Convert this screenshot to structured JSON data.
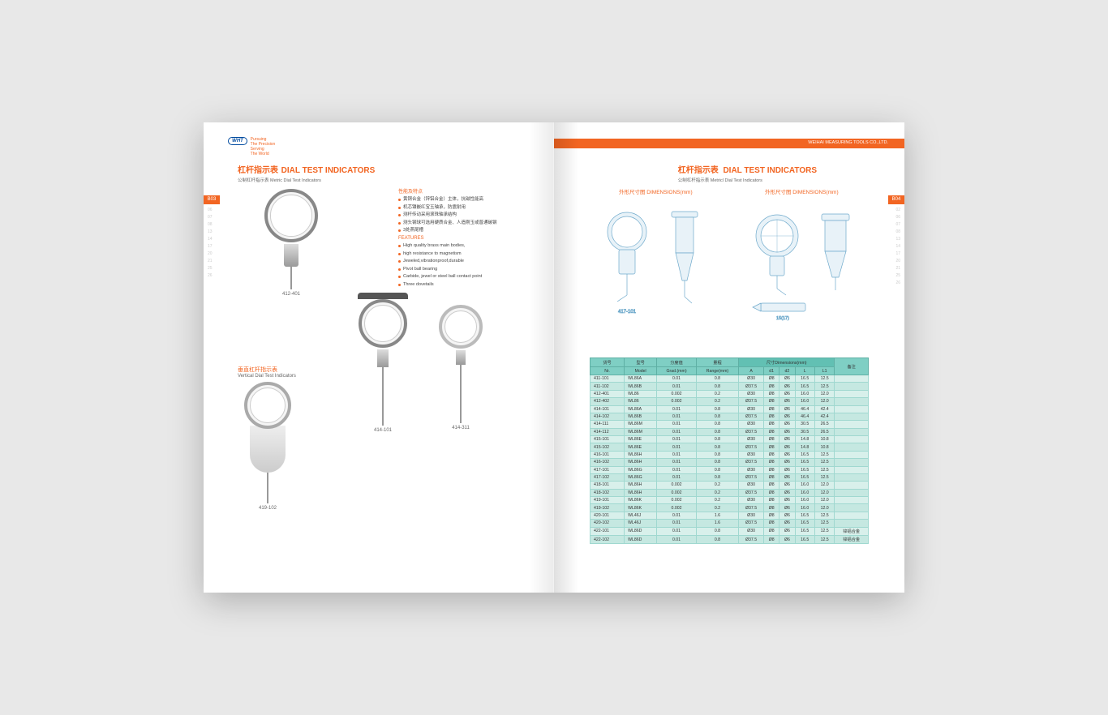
{
  "brand": {
    "logo_text": "WHT",
    "slogan1": "Pursuing",
    "slogan2": "The Precision",
    "slogan3": "Serving",
    "slogan4": "The World"
  },
  "company": "WEIHAI MEASURING TOOLS CO.,LTD.",
  "left": {
    "title_cn": "杠杆指示表",
    "title_en": "DIAL TEST INDICATORS",
    "subtitle": "公制杠杆指示表 Metric Dial Test Indicators",
    "tab": "B03",
    "edge_nums": [
      "06",
      "07",
      "08",
      "13",
      "14",
      "17",
      "20",
      "21",
      "25",
      "26"
    ],
    "features_cn_title": "性能及特点",
    "features_en_title": "FEATURES",
    "features_cn": [
      "黄铜合金（锌铝合金）主体，抗磁性能高",
      "机芯镶嵌红宝玉轴承，防震耐用",
      "测杆传动采用滚珠轴承结构",
      "测头钢球可选用硬质合金、人造刚玉或普通碳钢",
      "3处燕尾槽"
    ],
    "features_en": [
      "High quality brass main bodies,",
      "high resistance to magnetism",
      "Jeweled,vibrationproof,durable",
      "Pivot ball bearing",
      "Carbide, jewel or steel ball contact point",
      "Three dovetails"
    ],
    "products": {
      "p1": "412-401",
      "p2": "414-101",
      "p3": "414-311",
      "p4": "419-102"
    },
    "vertical_cn": "垂直杠杆指示表",
    "vertical_en": "Vertical Dial Test Indicators"
  },
  "right": {
    "title_cn": "杠杆指示表",
    "title_en": "DIAL TEST INDICATORS",
    "subtitle": "公制杠杆指示表 Metricl Dial Test  Indicators",
    "dim_title": "外形尺寸图 DIMENSIONS(mm)",
    "tab": "B04",
    "edge_nums": [
      "02",
      "06",
      "07",
      "08",
      "13",
      "14",
      "17",
      "20",
      "21",
      "25",
      "26"
    ],
    "schematic_label": "417-101",
    "schematic_dim": "15(17)",
    "table": {
      "head1": [
        "货号",
        "型号",
        "分度值",
        "量程"
      ],
      "head1b": [
        "Nr.",
        "Model",
        "Grad.(mm)",
        "Range(mm)"
      ],
      "dim_group": "尺寸Dimensions(mm)",
      "dim_cols": [
        "A",
        "d1",
        "d2",
        "L",
        "L1"
      ],
      "remark": "备注",
      "rows": [
        [
          "411-101",
          "WL86A",
          "0.01",
          "0.8",
          "Ø30",
          "Ø8",
          "Ø6",
          "16.5",
          "12.5",
          ""
        ],
        [
          "411-102",
          "WL86B",
          "0.01",
          "0.8",
          "Ø37.5",
          "Ø8",
          "Ø6",
          "16.5",
          "12.5",
          ""
        ],
        [
          "412-401",
          "WL86",
          "0.002",
          "0.2",
          "Ø30",
          "Ø8",
          "Ø6",
          "16.0",
          "12.0",
          ""
        ],
        [
          "412-402",
          "WL86",
          "0.002",
          "0.2",
          "Ø37.5",
          "Ø8",
          "Ø6",
          "16.0",
          "12.0",
          ""
        ],
        [
          "414-101",
          "WL86A",
          "0.01",
          "0.8",
          "Ø30",
          "Ø8",
          "Ø6",
          "46.4",
          "42.4",
          ""
        ],
        [
          "414-102",
          "WL86B",
          "0.01",
          "0.8",
          "Ø37.5",
          "Ø8",
          "Ø6",
          "46.4",
          "42.4",
          ""
        ],
        [
          "414-111",
          "WL86M",
          "0.01",
          "0.8",
          "Ø30",
          "Ø8",
          "Ø6",
          "30.5",
          "26.5",
          ""
        ],
        [
          "414-112",
          "WL86M",
          "0.01",
          "0.8",
          "Ø37.5",
          "Ø8",
          "Ø6",
          "30.5",
          "26.5",
          ""
        ],
        [
          "415-101",
          "WL86E",
          "0.01",
          "0.8",
          "Ø30",
          "Ø8",
          "Ø6",
          "14.8",
          "10.8",
          ""
        ],
        [
          "415-102",
          "WL86E",
          "0.01",
          "0.8",
          "Ø37.5",
          "Ø8",
          "Ø6",
          "14.8",
          "10.8",
          ""
        ],
        [
          "416-101",
          "WL86H",
          "0.01",
          "0.8",
          "Ø30",
          "Ø8",
          "Ø6",
          "16.5",
          "12.5",
          ""
        ],
        [
          "416-102",
          "WL86H",
          "0.01",
          "0.8",
          "Ø37.5",
          "Ø8",
          "Ø6",
          "16.5",
          "12.5",
          ""
        ],
        [
          "417-101",
          "WL86G",
          "0.01",
          "0.8",
          "Ø30",
          "Ø8",
          "Ø6",
          "16.5",
          "12.5",
          ""
        ],
        [
          "417-102",
          "WL86G",
          "0.01",
          "0.8",
          "Ø37.5",
          "Ø8",
          "Ø6",
          "16.5",
          "12.5",
          ""
        ],
        [
          "418-101",
          "WL86H",
          "0.002",
          "0.2",
          "Ø30",
          "Ø8",
          "Ø6",
          "16.0",
          "12.0",
          ""
        ],
        [
          "418-102",
          "WL86H",
          "0.002",
          "0.2",
          "Ø37.5",
          "Ø8",
          "Ø6",
          "16.0",
          "12.0",
          ""
        ],
        [
          "419-101",
          "WL86K",
          "0.002",
          "0.2",
          "Ø30",
          "Ø8",
          "Ø6",
          "16.0",
          "12.0",
          ""
        ],
        [
          "419-102",
          "WL86K",
          "0.002",
          "0.2",
          "Ø37.5",
          "Ø8",
          "Ø6",
          "16.0",
          "12.0",
          ""
        ],
        [
          "420-101",
          "WL46J",
          "0.01",
          "1.6",
          "Ø30",
          "Ø8",
          "Ø6",
          "16.5",
          "12.5",
          ""
        ],
        [
          "420-102",
          "WL46J",
          "0.01",
          "1.6",
          "Ø37.5",
          "Ø8",
          "Ø6",
          "16.5",
          "12.5",
          ""
        ],
        [
          "422-101",
          "WL86D",
          "0.01",
          "0.8",
          "Ø30",
          "Ø8",
          "Ø6",
          "16.5",
          "12.5",
          "锌铝合金"
        ],
        [
          "422-102",
          "WL86D",
          "0.01",
          "0.8",
          "Ø37.5",
          "Ø8",
          "Ø6",
          "16.5",
          "12.5",
          "锌铝合金"
        ]
      ]
    }
  },
  "colors": {
    "accent": "#f26522",
    "table_head": "#7fcfc4",
    "table_row1": "#d8f0eb",
    "table_row2": "#c5e8e1",
    "schematic_stroke": "#6faacc",
    "schematic_fill": "#e8f2f8"
  }
}
